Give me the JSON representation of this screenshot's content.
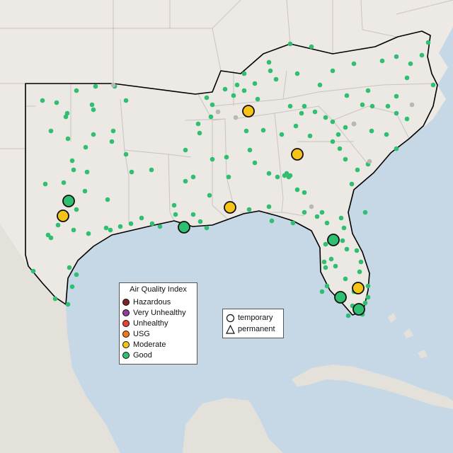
{
  "map": {
    "region": "Southeastern United States",
    "colors": {
      "water": "#c6d8e6",
      "land": "#ede9e4",
      "land_other": "#e4e0da",
      "state_border": "#c9c4bf",
      "region_outline": "#000000",
      "marker_outline": "#111111"
    }
  },
  "legend": {
    "title": "Air Quality Index",
    "categories": [
      {
        "label": "Hazardous",
        "color": "#7e2323"
      },
      {
        "label": "Very Unhealthy",
        "color": "#8f3f97"
      },
      {
        "label": "Unhealthy",
        "color": "#e8432e"
      },
      {
        "label": "USG",
        "color": "#f07a17"
      },
      {
        "label": "Moderate",
        "color": "#f5c416"
      },
      {
        "label": "Good",
        "color": "#2fbf71"
      }
    ]
  },
  "monitor_types": {
    "temporary_label": "temporary",
    "permanent_label": "permanent"
  }
}
